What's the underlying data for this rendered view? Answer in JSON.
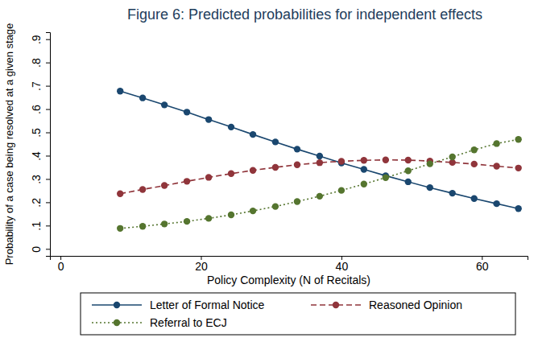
{
  "chart_data": {
    "type": "line",
    "title": "Figure 6: Predicted probabilities for independent effects",
    "x_label": "Policy Complexity (N of Recitals)",
    "y_label": "Probability of a case being resolved at a given stage",
    "x": [
      8.5,
      11.7,
      14.8,
      18.0,
      21.1,
      24.3,
      27.4,
      30.6,
      33.7,
      36.9,
      40.0,
      43.2,
      46.3,
      49.5,
      52.6,
      55.8,
      58.9,
      62.1,
      65.2
    ],
    "series": [
      {
        "name": "Letter of Formal Notice",
        "color": "#1a476f",
        "marker": "circle",
        "line_style": "solid",
        "values": [
          0.677,
          0.648,
          0.618,
          0.587,
          0.555,
          0.523,
          0.491,
          0.459,
          0.428,
          0.398,
          0.369,
          0.341,
          0.314,
          0.288,
          0.263,
          0.239,
          0.216,
          0.194,
          0.173
        ]
      },
      {
        "name": "Reasoned Opinion",
        "color": "#90353b",
        "marker": "circle",
        "line_style": "dash",
        "values": [
          0.237,
          0.255,
          0.272,
          0.29,
          0.307,
          0.323,
          0.337,
          0.35,
          0.361,
          0.37,
          0.376,
          0.38,
          0.382,
          0.381,
          0.377,
          0.371,
          0.364,
          0.355,
          0.347
        ]
      },
      {
        "name": "Referral to ECJ",
        "color": "#55752f",
        "marker": "circle",
        "line_style": "dot",
        "values": [
          0.088,
          0.097,
          0.107,
          0.118,
          0.131,
          0.146,
          0.163,
          0.182,
          0.203,
          0.226,
          0.251,
          0.278,
          0.306,
          0.335,
          0.365,
          0.395,
          0.425,
          0.452,
          0.47
        ]
      }
    ],
    "xlim": [
      -1.5,
      66.5
    ],
    "xticks": [
      0,
      20,
      40,
      60
    ],
    "ylim": [
      -0.03,
      0.93
    ],
    "yticks": [
      0,
      {
        "value": 0.1,
        "label": ".1"
      },
      {
        "value": 0.2,
        "label": ".2"
      },
      {
        "value": 0.3,
        "label": ".3"
      },
      {
        "value": 0.4,
        "label": ".4"
      },
      {
        "value": 0.5,
        "label": ".5"
      },
      {
        "value": 0.6,
        "label": ".6"
      },
      {
        "value": 0.7,
        "label": ".7"
      },
      {
        "value": 0.8,
        "label": ".8"
      },
      {
        "value": 0.9,
        "label": ".9"
      }
    ],
    "grid": false,
    "legend": "bottom"
  }
}
